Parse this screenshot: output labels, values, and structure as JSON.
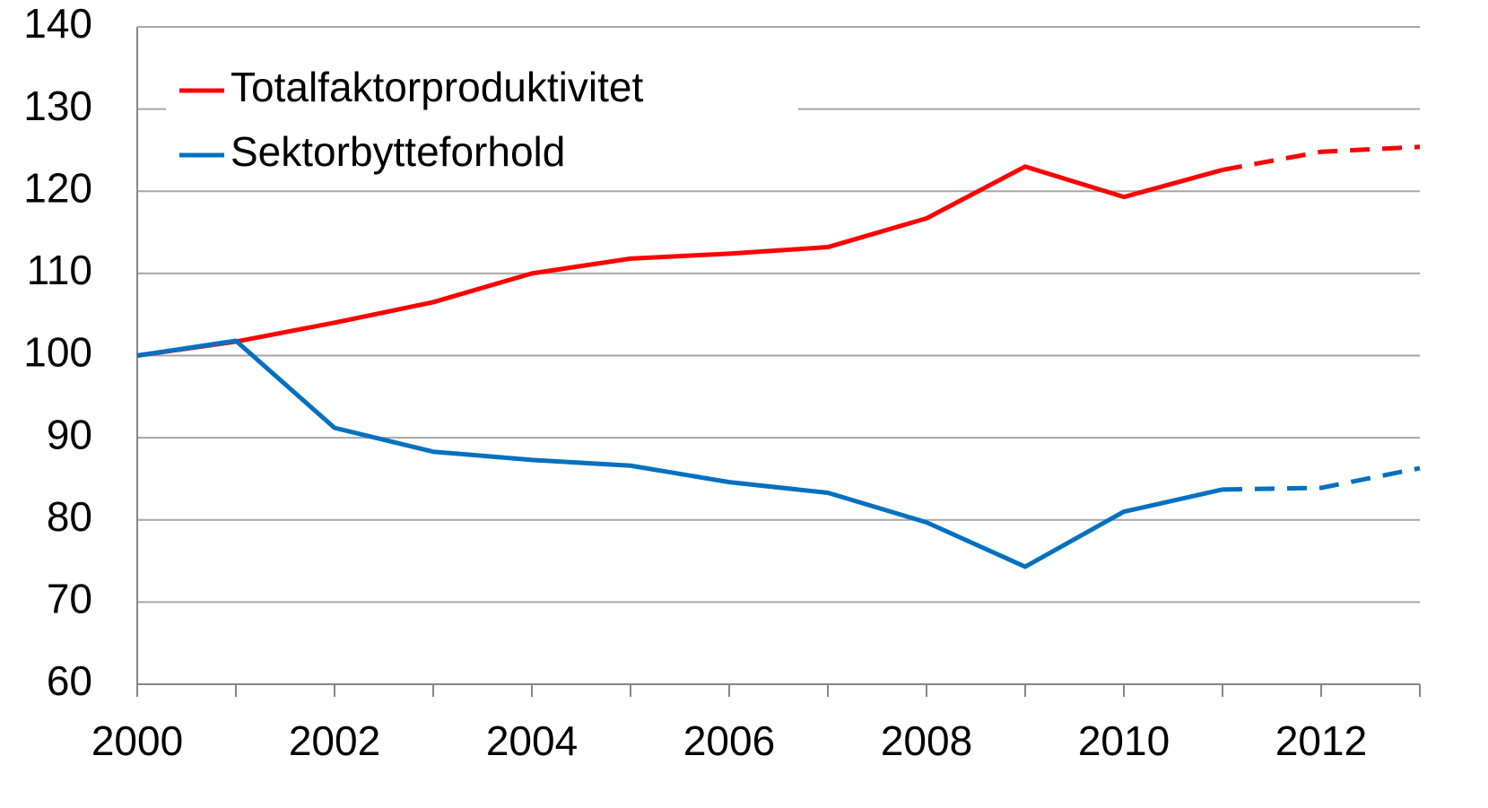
{
  "chart_data": {
    "type": "line",
    "x": [
      2000,
      2001,
      2002,
      2003,
      2004,
      2005,
      2006,
      2007,
      2008,
      2009,
      2010,
      2011,
      2012,
      2013
    ],
    "series": [
      {
        "name": "Totalfaktorproduktivitet",
        "color": "#ff0000",
        "values": [
          100,
          101.7,
          104,
          106.5,
          110,
          111.8,
          112.4,
          113.2,
          116.7,
          123,
          119.3,
          122.6,
          124.8,
          125.4
        ]
      },
      {
        "name": "Sektorbytteforhold",
        "color": "#0070c0",
        "values": [
          100,
          101.8,
          91.2,
          88.3,
          87.3,
          86.6,
          84.6,
          83.3,
          79.7,
          74.3,
          81,
          83.7,
          83.9,
          86.3
        ]
      }
    ],
    "dashed_from_x": 2011,
    "xlim": [
      2000,
      2013
    ],
    "xticks": [
      2000,
      2002,
      2004,
      2006,
      2008,
      2010,
      2012
    ],
    "xminor_ticks": [
      2001,
      2003,
      2005,
      2007,
      2009,
      2011,
      2013
    ],
    "ylim": [
      60,
      140
    ],
    "yticks": [
      60,
      70,
      80,
      90,
      100,
      110,
      120,
      130,
      140
    ],
    "grid": true,
    "legend": "upper left"
  }
}
